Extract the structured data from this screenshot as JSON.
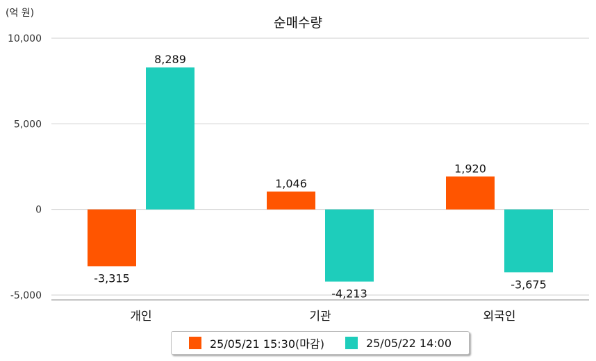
{
  "unit_label": "(억 원)",
  "chart_data": {
    "type": "bar",
    "title": "순매수량",
    "categories": [
      "개인",
      "기관",
      "외국인"
    ],
    "series": [
      {
        "name": "25/05/21 15:30(마감)",
        "color": "#ff5500",
        "values": [
          -3315,
          1046,
          1920
        ],
        "labels": [
          "-3,315",
          "1,046",
          "1,920"
        ]
      },
      {
        "name": "25/05/22 14:00",
        "color": "#1ecdbb",
        "values": [
          8289,
          -4213,
          -3675
        ],
        "labels": [
          "8,289",
          "-4,213",
          "-3,675"
        ]
      }
    ],
    "ylim": [
      -5000,
      10000
    ],
    "y_ticks": [
      10000,
      5000,
      0,
      -5000
    ],
    "y_tick_labels": [
      "10,000",
      "5,000",
      "0",
      "-5,000"
    ],
    "grid": true,
    "legend_position": "bottom"
  }
}
